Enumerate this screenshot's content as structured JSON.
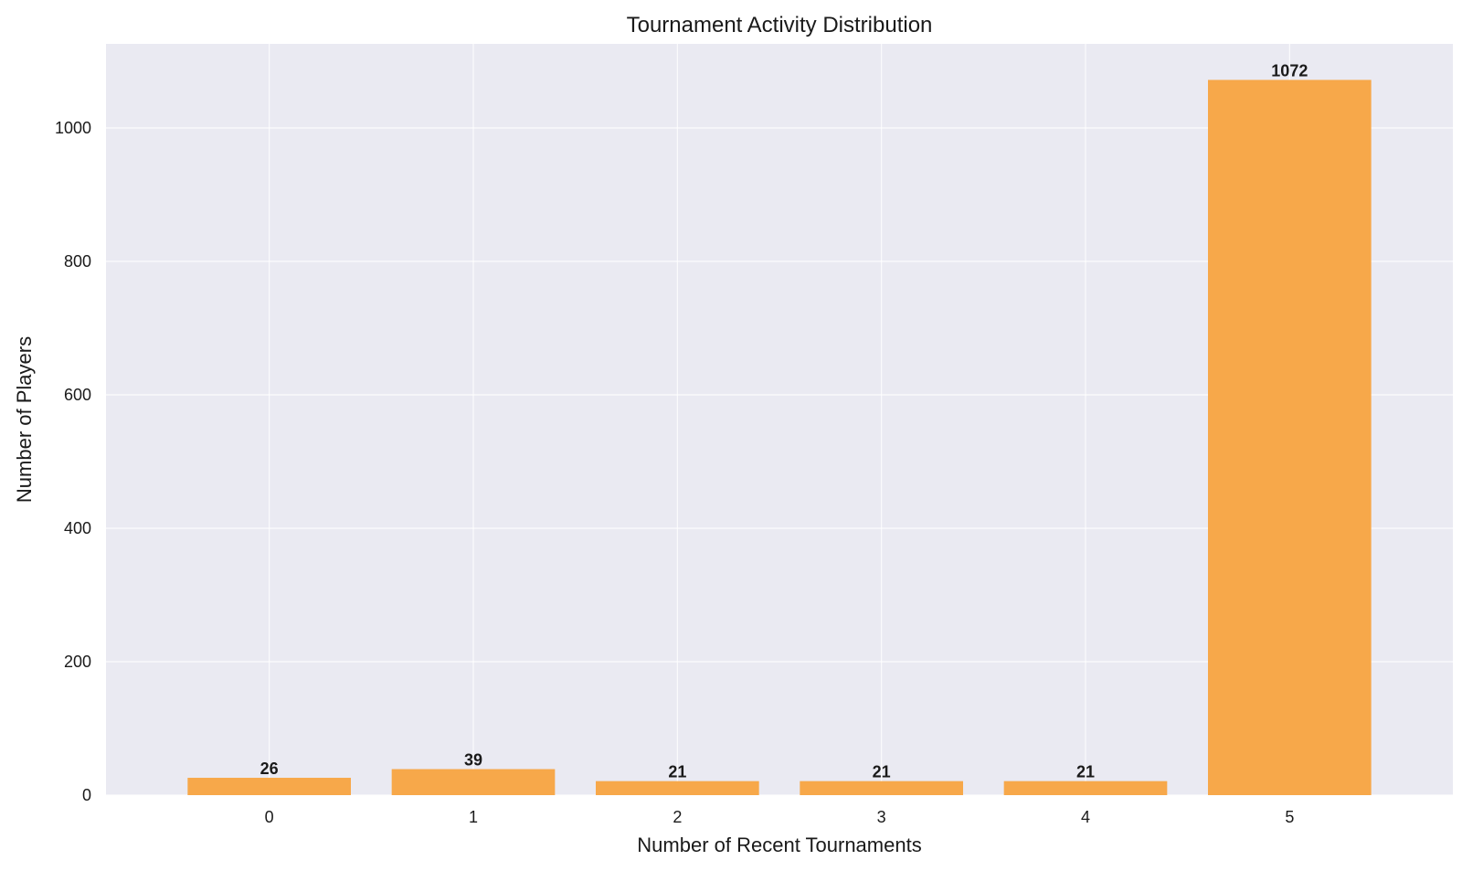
{
  "chart_data": {
    "type": "bar",
    "title": "Tournament Activity Distribution",
    "xlabel": "Number of Recent Tournaments",
    "ylabel": "Number of Players",
    "categories": [
      "0",
      "1",
      "2",
      "3",
      "4",
      "5"
    ],
    "values": [
      26,
      39,
      21,
      21,
      21,
      1072
    ],
    "ylim": [
      0,
      1126
    ],
    "yticks": [
      0,
      200,
      400,
      600,
      800,
      1000
    ],
    "grid": true,
    "colors": {
      "bar": "#f7a84a",
      "plot_background": "#eaeaf2",
      "grid": "#ffffff"
    }
  }
}
